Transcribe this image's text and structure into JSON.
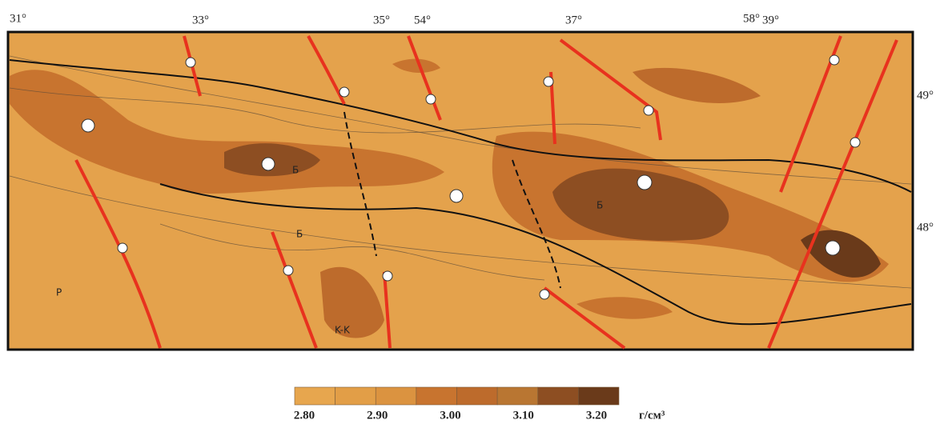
{
  "map": {
    "lon_labels": [
      "31°",
      "33°",
      "35°",
      "54°",
      "37°",
      "58°",
      "39°"
    ],
    "lat_labels": [
      "49°",
      "48°"
    ],
    "region_labels": [
      "P",
      "K-K",
      "Б",
      "Б",
      "Б"
    ]
  },
  "legend": {
    "colors": [
      "#e7a64e",
      "#e29e47",
      "#db9340",
      "#c8742f",
      "#bd6b2c",
      "#b97632",
      "#8d4e22",
      "#6a3a1a"
    ],
    "labels": [
      "2.80",
      "2.90",
      "3.00",
      "3.10",
      "3.20"
    ],
    "unit": "г/см³"
  }
}
